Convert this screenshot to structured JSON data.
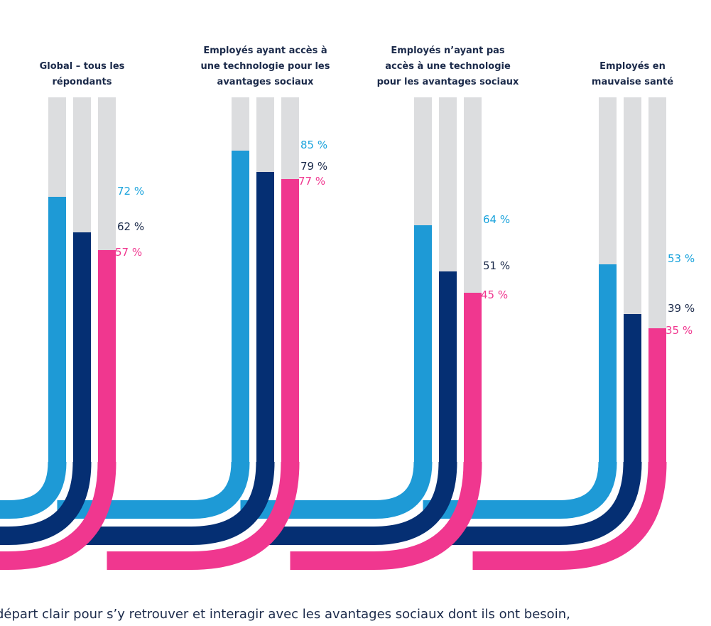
{
  "chart_data": {
    "type": "bar",
    "ylim": [
      0,
      100
    ],
    "value_suffix": " %",
    "series": [
      {
        "key": "s1",
        "color": "#1e9ad6",
        "values": [
          72,
          85,
          64,
          53
        ]
      },
      {
        "key": "s2",
        "color": "#052f73",
        "values": [
          62,
          79,
          51,
          39
        ]
      },
      {
        "key": "s3",
        "color": "#f0378f",
        "values": [
          57,
          77,
          45,
          35
        ]
      }
    ],
    "groups": [
      {
        "title": [
          "Global – tous les",
          "répondants"
        ]
      },
      {
        "title": [
          "Employés ayant accès à",
          "une technologie pour les",
          "avantages sociaux"
        ]
      },
      {
        "title": [
          "Employés n’ayant pas",
          "accès à une technologie",
          "pour les avantages sociaux"
        ]
      },
      {
        "title": [
          "Employés en",
          "mauvaise santé"
        ]
      }
    ],
    "track_color": "#dcdddf",
    "label_colors": [
      "#1aa3dc",
      "#1b2a4a",
      "#f0378f"
    ]
  },
  "footer": {
    "text": "départ clair pour s’y retrouver et interagir avec les avantages sociaux dont ils ont besoin,"
  }
}
